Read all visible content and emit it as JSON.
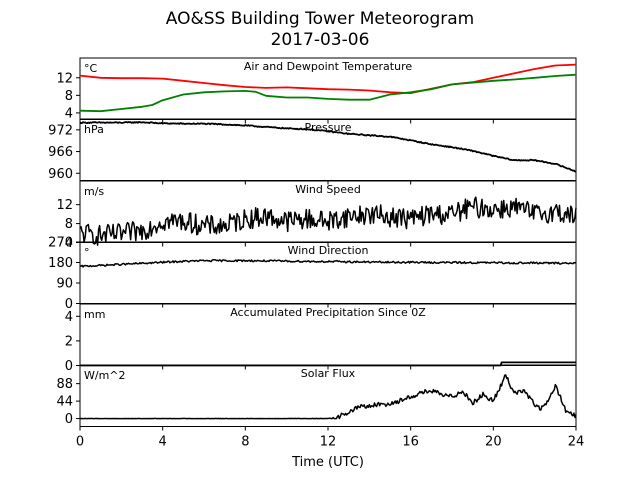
{
  "figure": {
    "title": "AO&SS Building Tower Meteorogram",
    "subtitle": "2017-03-06",
    "xlabel": "Time (UTC)"
  },
  "chart_data": [
    {
      "type": "line",
      "title": "Air and Dewpoint Temperature",
      "unit": "°C",
      "xlim": [
        0,
        24
      ],
      "ylim": [
        2.5,
        16.5
      ],
      "yticks": [
        4,
        8,
        12
      ],
      "series": [
        {
          "color": "#ff0000",
          "x": [
            0,
            1,
            2,
            3,
            4,
            5,
            6,
            7,
            8,
            9,
            10,
            11,
            12,
            13,
            14,
            15,
            16,
            17,
            18,
            19,
            20,
            21,
            22,
            23,
            24
          ],
          "y": [
            12.5,
            12.0,
            11.9,
            11.9,
            11.8,
            11.3,
            10.8,
            10.3,
            9.9,
            9.7,
            9.8,
            9.6,
            9.4,
            9.3,
            9.1,
            8.7,
            8.5,
            9.5,
            10.5,
            11.0,
            12.0,
            13.0,
            14.0,
            14.8,
            15.0
          ]
        },
        {
          "color": "#008000",
          "x": [
            0,
            1,
            2,
            3,
            3.5,
            4,
            5,
            6,
            7,
            8,
            8.5,
            9,
            10,
            11,
            12,
            13,
            14,
            15,
            16,
            17,
            18,
            19,
            20,
            21,
            22,
            23,
            24
          ],
          "y": [
            4.5,
            4.4,
            4.9,
            5.4,
            5.8,
            6.9,
            8.2,
            8.7,
            8.9,
            9.0,
            8.8,
            7.9,
            7.5,
            7.5,
            7.2,
            7.0,
            7.0,
            8.2,
            8.7,
            9.4,
            10.5,
            10.9,
            11.3,
            11.6,
            12.0,
            12.4,
            12.7
          ]
        }
      ]
    },
    {
      "type": "line",
      "title": "Pressure",
      "unit": "hPa",
      "xlim": [
        0,
        24
      ],
      "ylim": [
        958,
        975
      ],
      "yticks": [
        960,
        966,
        972
      ],
      "series": [
        {
          "color": "#000000",
          "x": [
            0,
            1,
            2,
            3,
            4,
            5,
            6,
            7,
            8,
            9,
            10,
            11,
            12,
            13,
            14,
            15,
            16,
            17,
            18,
            19,
            20,
            21,
            22,
            23,
            24
          ],
          "y": [
            974.0,
            974.0,
            974.0,
            974.1,
            973.8,
            973.7,
            973.7,
            973.5,
            973.2,
            972.8,
            972.4,
            972.2,
            971.6,
            970.9,
            970.5,
            970.1,
            969.1,
            968.0,
            967.2,
            966.2,
            964.8,
            963.6,
            963.6,
            962.6,
            960.5
          ]
        }
      ]
    },
    {
      "type": "line",
      "title": "Wind Speed",
      "unit": "m/s",
      "xlim": [
        0,
        24
      ],
      "ylim": [
        4,
        17
      ],
      "yticks": [
        4,
        8,
        12
      ],
      "series": [
        {
          "color": "#000000",
          "x": [
            0,
            1,
            2,
            3,
            4,
            5,
            6,
            7,
            8,
            9,
            10,
            11,
            12,
            13,
            14,
            15,
            16,
            17,
            18,
            19,
            20,
            21,
            22,
            23,
            24
          ],
          "y": [
            6.0,
            5.5,
            5.8,
            6.5,
            8.5,
            8.5,
            7.5,
            7.5,
            9.0,
            9.5,
            8.5,
            9.0,
            8.5,
            9.5,
            10.0,
            9.5,
            9.0,
            10.0,
            10.0,
            11.5,
            11.0,
            11.5,
            10.0,
            10.5,
            9.5
          ]
        }
      ]
    },
    {
      "type": "line",
      "title": "Wind Direction",
      "unit": "°",
      "xlim": [
        0,
        24
      ],
      "ylim": [
        0,
        270
      ],
      "yticks": [
        0,
        90,
        180,
        270
      ],
      "series": [
        {
          "color": "#000000",
          "x": [
            0,
            1,
            2,
            3,
            4,
            5,
            6,
            7,
            8,
            9,
            10,
            11,
            12,
            13,
            14,
            15,
            16,
            17,
            18,
            19,
            20,
            21,
            22,
            23,
            24
          ],
          "y": [
            163,
            167,
            172,
            176,
            181,
            185,
            188,
            188,
            188,
            187,
            186,
            185,
            184,
            183,
            182,
            181,
            181,
            180,
            180,
            179,
            179,
            178,
            178,
            177,
            177
          ]
        }
      ]
    },
    {
      "type": "line",
      "title": "Accumulated Precipitation Since 0Z",
      "unit": "mm",
      "xlim": [
        0,
        24
      ],
      "ylim": [
        0,
        5
      ],
      "yticks": [
        0,
        2,
        4
      ],
      "series": [
        {
          "color": "#000000",
          "x": [
            0,
            20.35,
            20.4,
            24
          ],
          "y": [
            0,
            0,
            0.25,
            0.25
          ]
        }
      ]
    },
    {
      "type": "line",
      "title": "Solar Flux",
      "unit": "W/m^2",
      "xlim": [
        0,
        24
      ],
      "ylim": [
        -20,
        135
      ],
      "yticks": [
        0,
        44,
        88
      ],
      "series": [
        {
          "color": "#000000",
          "x": [
            0,
            1,
            2,
            3,
            4,
            5,
            6,
            7,
            8,
            9,
            10,
            11,
            12,
            12.5,
            13,
            13.5,
            14,
            14.5,
            15,
            15.5,
            16,
            16.5,
            17,
            17.5,
            18,
            18.5,
            19,
            19.5,
            20,
            20.3,
            20.6,
            21,
            21.5,
            22,
            22.3,
            22.7,
            23,
            23.5,
            24
          ],
          "y": [
            0,
            0,
            0,
            0,
            0,
            0,
            0,
            0,
            0,
            0,
            0,
            0,
            0,
            5,
            15,
            30,
            32,
            35,
            38,
            45,
            55,
            65,
            70,
            60,
            55,
            70,
            40,
            60,
            45,
            75,
            110,
            65,
            70,
            35,
            25,
            45,
            85,
            20,
            5
          ]
        }
      ]
    }
  ],
  "x_axis": {
    "ticks": [
      "0",
      "4",
      "8",
      "12",
      "16",
      "20",
      "24"
    ],
    "tick_values": [
      0,
      4,
      8,
      12,
      16,
      20,
      24
    ]
  }
}
